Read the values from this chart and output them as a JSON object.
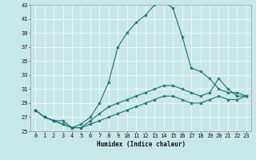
{
  "xlabel": "Humidex (Indice chaleur)",
  "xlim": [
    -0.5,
    23.5
  ],
  "ylim": [
    25,
    43
  ],
  "yticks": [
    25,
    27,
    29,
    31,
    33,
    35,
    37,
    39,
    41,
    43
  ],
  "xticks": [
    0,
    1,
    2,
    3,
    4,
    5,
    6,
    7,
    8,
    9,
    10,
    11,
    12,
    13,
    14,
    15,
    16,
    17,
    18,
    19,
    20,
    21,
    22,
    23
  ],
  "bg_color": "#c8e8e8",
  "grid_color": "#ffffff",
  "line_color": "#1a7070",
  "line1_y": [
    28,
    27,
    26.5,
    26,
    25.5,
    26,
    27,
    29,
    32,
    37,
    39,
    40.5,
    41.5,
    43,
    43.5,
    42.5,
    38.5,
    34,
    33.5,
    32.5,
    31,
    30.5,
    30.5,
    30
  ],
  "line2_y": [
    28,
    27,
    26.5,
    26.5,
    25.5,
    25.5,
    26.5,
    27.5,
    28.5,
    29,
    29.5,
    30,
    30.5,
    31,
    31.5,
    31.5,
    31,
    30.5,
    30,
    30.5,
    32.5,
    31,
    30,
    30
  ],
  "line3_y": [
    28,
    27,
    26.5,
    26,
    25.5,
    25.5,
    26,
    26.5,
    27,
    27.5,
    28,
    28.5,
    29,
    29.5,
    30,
    30,
    29.5,
    29,
    29,
    29.5,
    30,
    29.5,
    29.5,
    30
  ]
}
